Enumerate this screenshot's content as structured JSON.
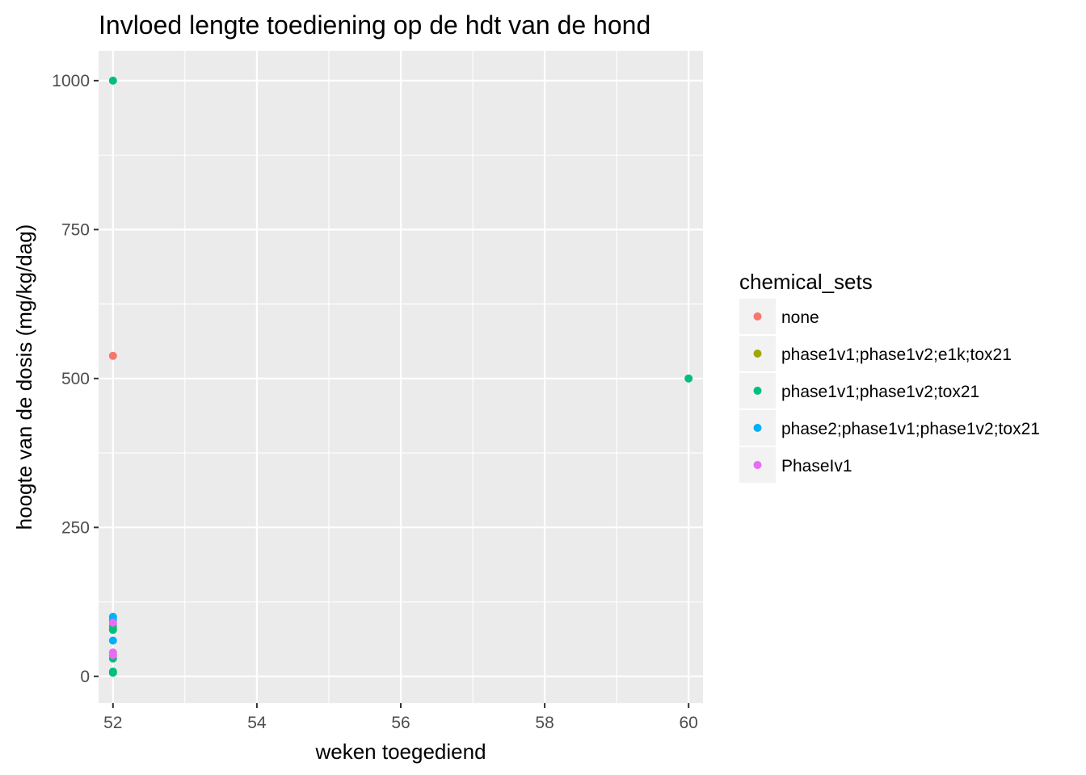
{
  "chart_data": {
    "type": "scatter",
    "title": "Invloed lengte toediening op de hdt van de hond",
    "xlabel": "weken toegediend",
    "ylabel": "hoogte van de dosis (mg/kg/dag)",
    "xlim": [
      51.8,
      60.2
    ],
    "ylim": [
      -45,
      1050
    ],
    "x_ticks": [
      52,
      54,
      56,
      58,
      60
    ],
    "x_tick_labels": [
      "52",
      "54",
      "56",
      "58",
      "60"
    ],
    "y_ticks": [
      0,
      250,
      500,
      750,
      1000
    ],
    "y_tick_labels": [
      "0",
      "250",
      "500",
      "750",
      "1000"
    ],
    "grid": true,
    "legend": {
      "title": "chemical_sets",
      "placement": "right"
    },
    "series": [
      {
        "name": "none",
        "color": "#F8766D",
        "points": [
          [
            52,
            538
          ]
        ]
      },
      {
        "name": "phase1v1;phase1v2;e1k;tox21",
        "color": "#A3A500",
        "points": [
          [
            52,
            35
          ],
          [
            52,
            80
          ]
        ]
      },
      {
        "name": "phase1v1;phase1v2;tox21",
        "color": "#00BF7D",
        "points": [
          [
            52,
            1000
          ],
          [
            60,
            500
          ],
          [
            52,
            85
          ],
          [
            52,
            78
          ],
          [
            52,
            30
          ],
          [
            52,
            8
          ],
          [
            52,
            6
          ]
        ]
      },
      {
        "name": "phase2;phase1v1;phase1v2;tox21",
        "color": "#00B0F6",
        "points": [
          [
            52,
            100
          ],
          [
            52,
            95
          ],
          [
            52,
            60
          ]
        ]
      },
      {
        "name": "PhaseIv1",
        "color": "#E76BF3",
        "points": [
          [
            52,
            90
          ],
          [
            52,
            40
          ],
          [
            52,
            36
          ]
        ]
      }
    ]
  }
}
